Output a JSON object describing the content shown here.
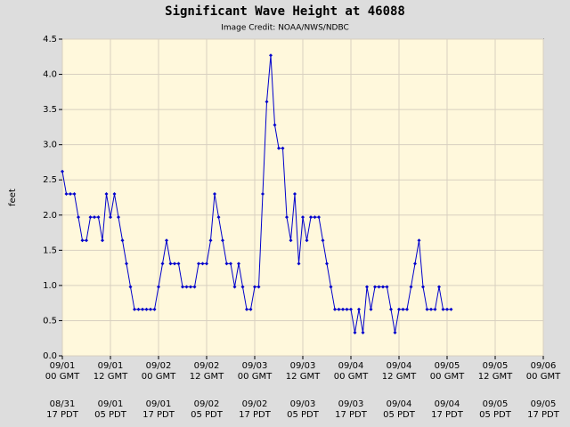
{
  "chart_data": {
    "type": "line",
    "title": "Significant Wave Height at 46088",
    "subtitle": "Image Credit: NOAA/NWS/NDBC",
    "y_label": "feet",
    "x": [
      0,
      1,
      2,
      3,
      4,
      5,
      6,
      7,
      8,
      9,
      10,
      11,
      12,
      13,
      14,
      15,
      16,
      17,
      18,
      19,
      20,
      21,
      22,
      23,
      24,
      25,
      26,
      27,
      28,
      29,
      30,
      31,
      32,
      33,
      34,
      35,
      36,
      37,
      38,
      39,
      40,
      41,
      42,
      43,
      44,
      45,
      46,
      47,
      48,
      49,
      50,
      51,
      52,
      53,
      54,
      55,
      56,
      57,
      58,
      59,
      60,
      61,
      62,
      63,
      64,
      65,
      66,
      67,
      68,
      69,
      70,
      71,
      72,
      73,
      74,
      75,
      76,
      77,
      78,
      79,
      80,
      81,
      82,
      83,
      84,
      85,
      86,
      87,
      88,
      89,
      90,
      91,
      92,
      93,
      94,
      95,
      96,
      97
    ],
    "series": [
      {
        "name": "Significant Wave Height",
        "color": "#0000cc",
        "values": [
          2.62,
          2.3,
          2.3,
          2.3,
          1.97,
          1.64,
          1.64,
          1.97,
          1.97,
          1.97,
          1.64,
          2.3,
          1.97,
          2.3,
          1.97,
          1.64,
          1.31,
          0.98,
          0.66,
          0.66,
          0.66,
          0.66,
          0.66,
          0.66,
          0.98,
          1.31,
          1.64,
          1.31,
          1.31,
          1.31,
          0.98,
          0.98,
          0.98,
          0.98,
          1.31,
          1.31,
          1.31,
          1.64,
          2.3,
          1.97,
          1.64,
          1.31,
          1.31,
          0.98,
          1.31,
          0.98,
          0.66,
          0.66,
          0.98,
          0.98,
          2.3,
          3.61,
          4.27,
          3.28,
          2.95,
          2.95,
          1.97,
          1.64,
          2.3,
          1.31,
          1.97,
          1.64,
          1.97,
          1.97,
          1.97,
          1.64,
          1.31,
          0.98,
          0.66,
          0.66,
          0.66,
          0.66,
          0.66,
          0.33,
          0.66,
          0.33,
          0.98,
          0.66,
          0.98,
          0.98,
          0.98,
          0.98,
          0.66,
          0.33,
          0.66,
          0.66,
          0.66,
          0.98,
          1.31,
          1.64,
          0.98,
          0.66,
          0.66,
          0.66,
          0.98,
          0.66,
          0.66,
          0.66
        ]
      }
    ],
    "xlim": [
      0,
      120
    ],
    "xticks": [
      {
        "value": 0,
        "label": [
          "09/01",
          "00 GMT"
        ]
      },
      {
        "value": 12,
        "label": [
          "09/01",
          "12 GMT"
        ]
      },
      {
        "value": 24,
        "label": [
          "09/02",
          "00 GMT"
        ]
      },
      {
        "value": 36,
        "label": [
          "09/02",
          "12 GMT"
        ]
      },
      {
        "value": 48,
        "label": [
          "09/03",
          "00 GMT"
        ]
      },
      {
        "value": 60,
        "label": [
          "09/03",
          "12 GMT"
        ]
      },
      {
        "value": 72,
        "label": [
          "09/04",
          "00 GMT"
        ]
      },
      {
        "value": 84,
        "label": [
          "09/04",
          "12 GMT"
        ]
      },
      {
        "value": 96,
        "label": [
          "09/05",
          "00 GMT"
        ]
      },
      {
        "value": 108,
        "label": [
          "09/05",
          "12 GMT"
        ]
      },
      {
        "value": 120,
        "label": [
          "09/06",
          "00 GMT"
        ]
      }
    ],
    "xticks_local": [
      {
        "value": 0,
        "label": [
          "08/31",
          "17 PDT"
        ]
      },
      {
        "value": 12,
        "label": [
          "09/01",
          "05 PDT"
        ]
      },
      {
        "value": 24,
        "label": [
          "09/01",
          "17 PDT"
        ]
      },
      {
        "value": 36,
        "label": [
          "09/02",
          "05 PDT"
        ]
      },
      {
        "value": 48,
        "label": [
          "09/02",
          "17 PDT"
        ]
      },
      {
        "value": 60,
        "label": [
          "09/03",
          "05 PDT"
        ]
      },
      {
        "value": 72,
        "label": [
          "09/03",
          "17 PDT"
        ]
      },
      {
        "value": 84,
        "label": [
          "09/04",
          "05 PDT"
        ]
      },
      {
        "value": 96,
        "label": [
          "09/04",
          "17 PDT"
        ]
      },
      {
        "value": 108,
        "label": [
          "09/05",
          "05 PDT"
        ]
      },
      {
        "value": 120,
        "label": [
          "09/05",
          "17 PDT"
        ]
      }
    ],
    "ylim": [
      0,
      4.5
    ],
    "yticks": [
      {
        "value": 0,
        "label": "0.0"
      },
      {
        "value": 0.5,
        "label": "0.5"
      },
      {
        "value": 1,
        "label": "1.0"
      },
      {
        "value": 1.5,
        "label": "1.5"
      },
      {
        "value": 2,
        "label": "2.0"
      },
      {
        "value": 2.5,
        "label": "2.5"
      },
      {
        "value": 3,
        "label": "3.0"
      },
      {
        "value": 3.5,
        "label": "3.5"
      },
      {
        "value": 4,
        "label": "4.0"
      },
      {
        "value": 4.5,
        "label": "4.5"
      }
    ],
    "grid": true
  }
}
